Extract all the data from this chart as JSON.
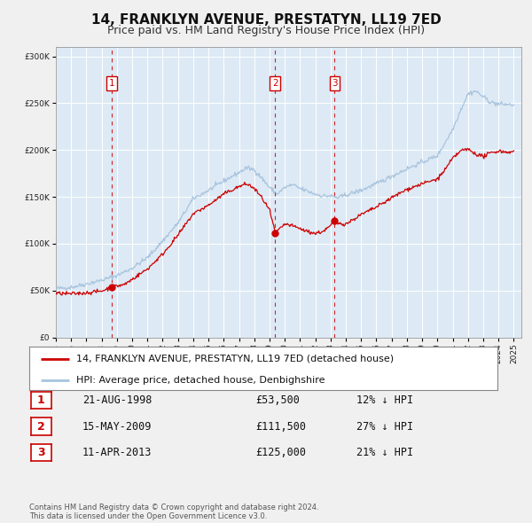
{
  "title": "14, FRANKLYN AVENUE, PRESTATYN, LL19 7ED",
  "subtitle": "Price paid vs. HM Land Registry's House Price Index (HPI)",
  "x_start": 1995.0,
  "x_end": 2025.5,
  "y_min": 0,
  "y_max": 310000,
  "yticks": [
    0,
    50000,
    100000,
    150000,
    200000,
    250000,
    300000
  ],
  "ytick_labels": [
    "£0",
    "£50K",
    "£100K",
    "£150K",
    "£200K",
    "£250K",
    "£300K"
  ],
  "xtick_years": [
    1995,
    1996,
    1997,
    1998,
    1999,
    2000,
    2001,
    2002,
    2003,
    2004,
    2005,
    2006,
    2007,
    2008,
    2009,
    2010,
    2011,
    2012,
    2013,
    2014,
    2015,
    2016,
    2017,
    2018,
    2019,
    2020,
    2021,
    2022,
    2023,
    2024,
    2025
  ],
  "hpi_color": "#a8c4de",
  "price_color": "#cc0000",
  "sale_marker_color": "#cc0000",
  "sale_marker_size": 6,
  "fig_bg_color": "#f0f0f0",
  "plot_bg_color": "#ddeaf5",
  "grid_color": "#ffffff",
  "sales": [
    {
      "year": 1998.64,
      "price": 53500,
      "label": "1"
    },
    {
      "year": 2009.37,
      "price": 111500,
      "label": "2"
    },
    {
      "year": 2013.27,
      "price": 125000,
      "label": "3"
    }
  ],
  "sale_vline_color": "#cc0000",
  "legend_label_price": "14, FRANKLYN AVENUE, PRESTATYN, LL19 7ED (detached house)",
  "legend_label_hpi": "HPI: Average price, detached house, Denbighshire",
  "table_rows": [
    {
      "num": "1",
      "date": "21-AUG-1998",
      "price": "£53,500",
      "note": "12% ↓ HPI"
    },
    {
      "num": "2",
      "date": "15-MAY-2009",
      "price": "£111,500",
      "note": "27% ↓ HPI"
    },
    {
      "num": "3",
      "date": "11-APR-2013",
      "price": "£125,000",
      "note": "21% ↓ HPI"
    }
  ],
  "footer": "Contains HM Land Registry data © Crown copyright and database right 2024.\nThis data is licensed under the Open Government Licence v3.0.",
  "title_fontsize": 11,
  "subtitle_fontsize": 9,
  "tick_fontsize": 6.5,
  "legend_fontsize": 8,
  "table_fontsize": 8.5
}
